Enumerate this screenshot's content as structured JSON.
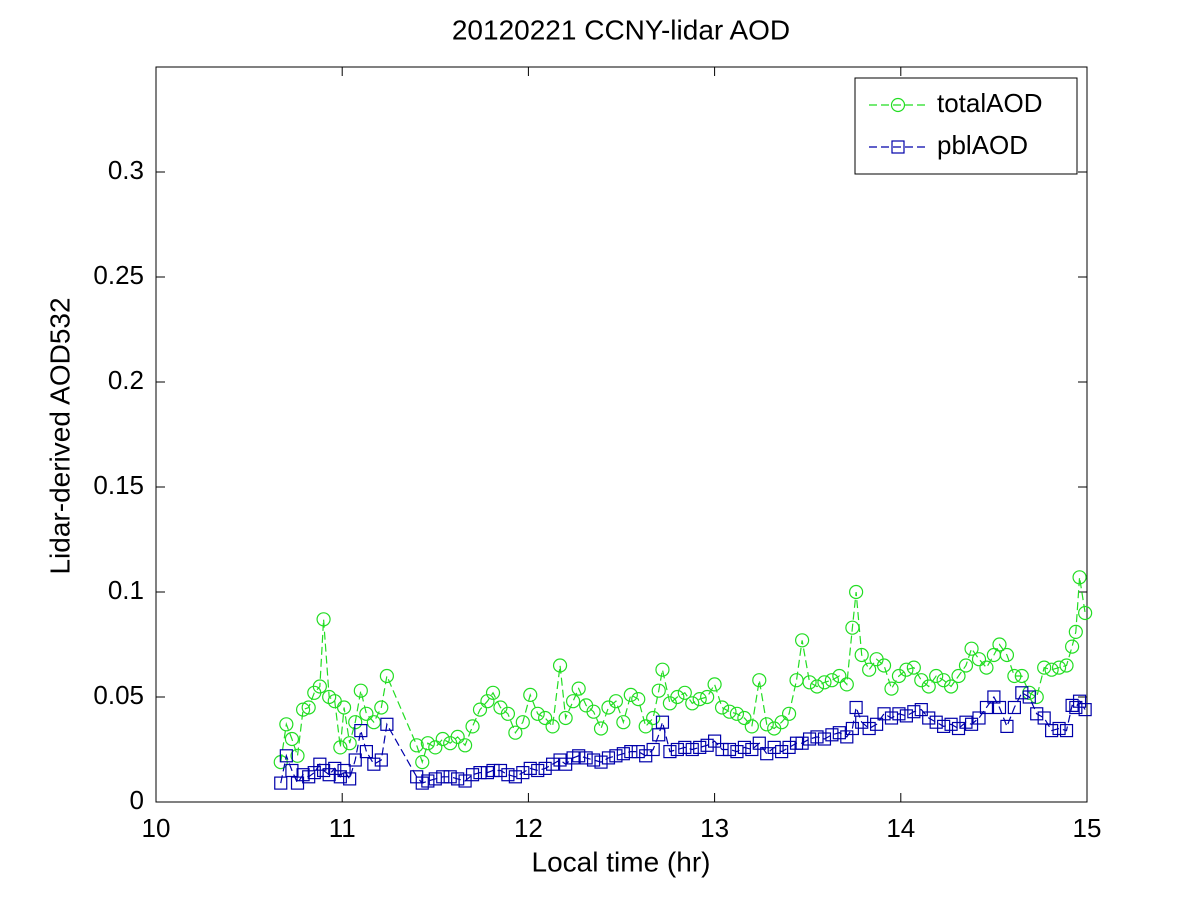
{
  "chart_data": {
    "type": "line",
    "title": "20120221 CCNY-lidar AOD",
    "x_label": "Local time (hr)",
    "y_label": "Lidar-derived AOD532",
    "x": [
      10.67,
      10.7,
      10.73,
      10.76,
      10.79,
      10.82,
      10.85,
      10.88,
      10.9,
      10.93,
      10.96,
      10.99,
      11.01,
      11.04,
      11.07,
      11.1,
      11.13,
      11.17,
      11.21,
      11.24,
      11.4,
      11.43,
      11.46,
      11.5,
      11.54,
      11.58,
      11.62,
      11.66,
      11.7,
      11.74,
      11.78,
      11.81,
      11.85,
      11.89,
      11.93,
      11.97,
      12.01,
      12.05,
      12.09,
      12.13,
      12.17,
      12.2,
      12.24,
      12.27,
      12.31,
      12.35,
      12.39,
      12.43,
      12.47,
      12.51,
      12.55,
      12.59,
      12.63,
      12.67,
      12.7,
      12.72,
      12.76,
      12.8,
      12.84,
      12.88,
      12.92,
      12.96,
      13.0,
      13.04,
      13.08,
      13.12,
      13.16,
      13.2,
      13.24,
      13.28,
      13.32,
      13.36,
      13.4,
      13.44,
      13.47,
      13.51,
      13.55,
      13.59,
      13.63,
      13.67,
      13.71,
      13.74,
      13.76,
      13.79,
      13.83,
      13.87,
      13.91,
      13.95,
      13.99,
      14.03,
      14.07,
      14.11,
      14.15,
      14.19,
      14.23,
      14.27,
      14.31,
      14.35,
      14.38,
      14.42,
      14.46,
      14.5,
      14.53,
      14.57,
      14.61,
      14.65,
      14.69,
      14.73,
      14.77,
      14.81,
      14.85,
      14.89,
      14.92,
      14.94,
      14.96,
      14.99
    ],
    "series": [
      {
        "name": "totalAOD",
        "color": "#22dd22",
        "marker": "circle",
        "values": [
          0.019,
          0.037,
          0.03,
          0.022,
          0.044,
          0.045,
          0.052,
          0.055,
          0.087,
          0.05,
          0.048,
          0.026,
          0.045,
          0.028,
          0.038,
          0.053,
          0.042,
          0.038,
          0.045,
          0.06,
          0.027,
          0.019,
          0.028,
          0.026,
          0.03,
          0.028,
          0.031,
          0.027,
          0.036,
          0.044,
          0.048,
          0.052,
          0.045,
          0.042,
          0.033,
          0.038,
          0.051,
          0.042,
          0.04,
          0.036,
          0.065,
          0.04,
          0.048,
          0.054,
          0.046,
          0.043,
          0.035,
          0.045,
          0.048,
          0.038,
          0.051,
          0.049,
          0.036,
          0.04,
          0.053,
          0.063,
          0.047,
          0.05,
          0.052,
          0.047,
          0.049,
          0.05,
          0.056,
          0.045,
          0.043,
          0.042,
          0.04,
          0.036,
          0.058,
          0.037,
          0.035,
          0.038,
          0.042,
          0.058,
          0.077,
          0.057,
          0.055,
          0.057,
          0.058,
          0.06,
          0.056,
          0.083,
          0.1,
          0.07,
          0.063,
          0.068,
          0.065,
          0.054,
          0.06,
          0.063,
          0.064,
          0.058,
          0.055,
          0.06,
          0.058,
          0.055,
          0.06,
          0.065,
          0.073,
          0.068,
          0.064,
          0.07,
          0.075,
          0.07,
          0.06,
          0.06,
          0.052,
          0.05,
          0.064,
          0.063,
          0.064,
          0.065,
          0.074,
          0.081,
          0.107,
          0.09
        ]
      },
      {
        "name": "pblAOD",
        "color": "#0000aa",
        "marker": "square",
        "values": [
          0.009,
          0.022,
          0.015,
          0.009,
          0.013,
          0.012,
          0.014,
          0.018,
          0.015,
          0.013,
          0.016,
          0.012,
          0.015,
          0.011,
          0.02,
          0.034,
          0.024,
          0.018,
          0.02,
          0.037,
          0.012,
          0.009,
          0.01,
          0.011,
          0.012,
          0.012,
          0.011,
          0.01,
          0.013,
          0.014,
          0.014,
          0.015,
          0.015,
          0.013,
          0.012,
          0.014,
          0.016,
          0.015,
          0.016,
          0.018,
          0.02,
          0.018,
          0.021,
          0.022,
          0.021,
          0.02,
          0.019,
          0.021,
          0.022,
          0.023,
          0.024,
          0.024,
          0.022,
          0.025,
          0.032,
          0.038,
          0.024,
          0.025,
          0.026,
          0.025,
          0.026,
          0.027,
          0.029,
          0.025,
          0.025,
          0.024,
          0.026,
          0.025,
          0.028,
          0.023,
          0.026,
          0.024,
          0.026,
          0.028,
          0.028,
          0.03,
          0.031,
          0.03,
          0.032,
          0.033,
          0.031,
          0.035,
          0.045,
          0.038,
          0.035,
          0.037,
          0.042,
          0.04,
          0.042,
          0.041,
          0.043,
          0.044,
          0.04,
          0.038,
          0.036,
          0.037,
          0.035,
          0.038,
          0.037,
          0.04,
          0.045,
          0.05,
          0.045,
          0.036,
          0.045,
          0.052,
          0.05,
          0.042,
          0.04,
          0.034,
          0.035,
          0.034,
          0.046,
          0.045,
          0.048,
          0.044
        ]
      }
    ],
    "xlim": [
      10,
      15
    ],
    "xticks": [
      10,
      11,
      12,
      13,
      14,
      15
    ],
    "ylim": [
      0,
      0.35
    ],
    "yticks": [
      0,
      0.05,
      0.1,
      0.15,
      0.2,
      0.25,
      0.3
    ],
    "grid": false,
    "legend": "upper right"
  }
}
